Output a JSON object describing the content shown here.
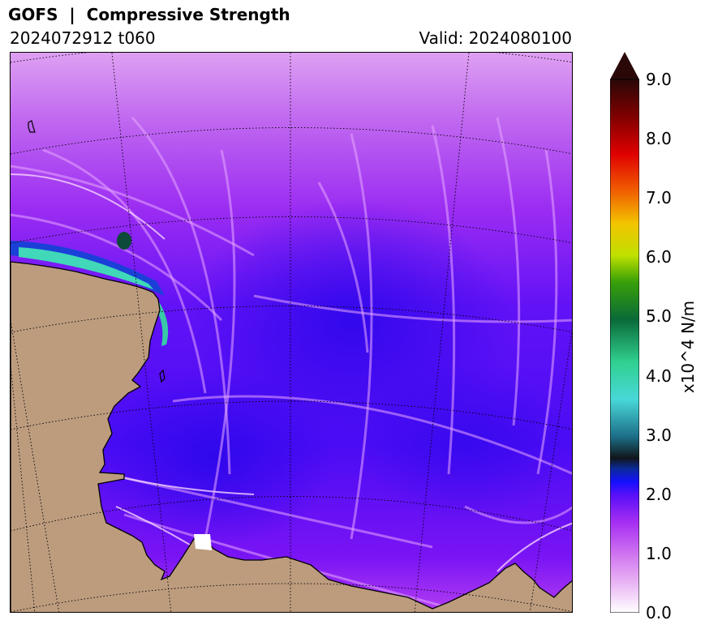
{
  "header": {
    "title": "GOFS  |  Compressive Strength",
    "run": "2024072912 t060",
    "valid": "Valid: 2024080100"
  },
  "colorbar": {
    "label": "x10^4 N/m",
    "min": 0.0,
    "max": 9.0,
    "extend": "max",
    "ticks": [
      "0.0",
      "1.0",
      "2.0",
      "3.0",
      "4.0",
      "5.0",
      "6.0",
      "7.0",
      "8.0",
      "9.0"
    ]
  },
  "colors": {
    "land": "#bd9c7e",
    "coastline": "#000000",
    "graticule": "#000000"
  }
}
